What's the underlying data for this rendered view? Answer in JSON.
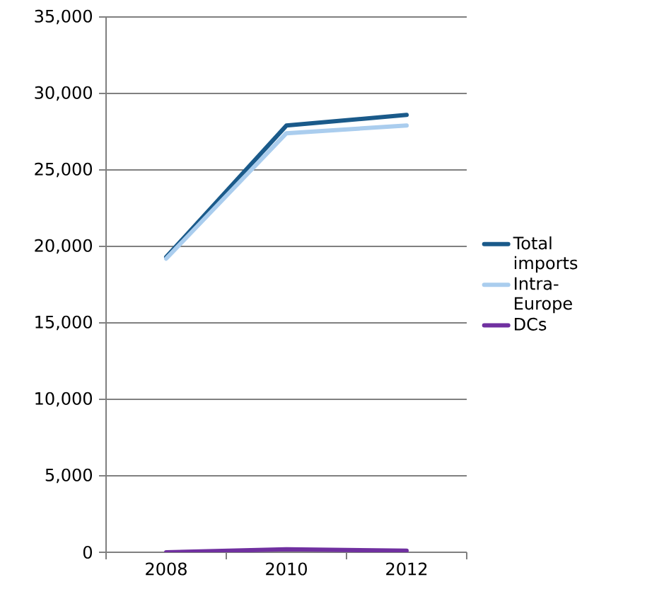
{
  "chart_data": {
    "type": "line",
    "categories": [
      "2008",
      "2010",
      "2012"
    ],
    "series": [
      {
        "name": "Total imports",
        "color": "#1a5a8a",
        "values": [
          19300,
          27900,
          28600
        ]
      },
      {
        "name": "Intra-Europe",
        "color": "#aacdee",
        "values": [
          19200,
          27400,
          27900
        ]
      },
      {
        "name": "DCs",
        "color": "#7030a0",
        "values": [
          0,
          200,
          100
        ]
      }
    ],
    "ylim": [
      0,
      35000
    ],
    "yticks": [
      {
        "value": 0,
        "label": "0"
      },
      {
        "value": 5000,
        "label": "5,000"
      },
      {
        "value": 10000,
        "label": "10,000"
      },
      {
        "value": 15000,
        "label": "15,000"
      },
      {
        "value": 20000,
        "label": "20,000"
      },
      {
        "value": 25000,
        "label": "25,000"
      },
      {
        "value": 30000,
        "label": "30,000"
      },
      {
        "value": 35000,
        "label": "35,000"
      }
    ],
    "grid": "y",
    "legend": "right",
    "marker": "none",
    "line_style": "solid"
  }
}
